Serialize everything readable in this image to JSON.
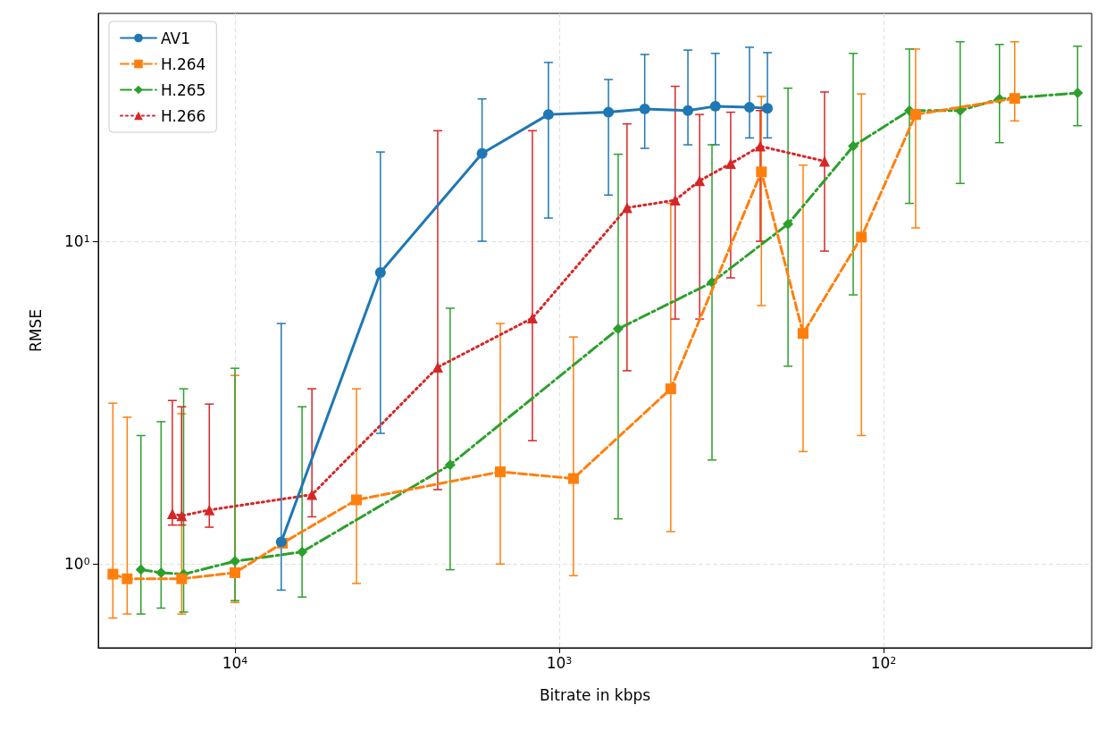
{
  "chart_data": {
    "type": "line",
    "xlabel": "Bitrate in kbps",
    "ylabel": "RMSE",
    "log": "xy",
    "grid": true,
    "legend": "top left",
    "xlim": [
      26400,
      22.8
    ],
    "ylim": [
      0.55,
      50.8
    ],
    "xticks": [
      {
        "value": 10000,
        "label": "10$^{4}$"
      },
      {
        "value": 1000,
        "label": "10$^{3}$"
      },
      {
        "value": 100,
        "label": "10$^{2}$"
      }
    ],
    "yticks": [
      {
        "value": 1,
        "label": "10$^{0}$"
      },
      {
        "value": 10,
        "label": "10$^{1}$"
      }
    ],
    "series": [
      {
        "name": "AV1",
        "color": "#1f77b4",
        "marker": "circle",
        "line_style": "solid",
        "x": [
          7200,
          3560,
          1730,
          1080,
          705,
          545,
          401,
          330,
          259,
          228
        ],
        "values": [
          1.17,
          8.0,
          18.7,
          24.7,
          25.1,
          25.7,
          25.4,
          26.2,
          26.0,
          25.8
        ],
        "errors": [
          [
            0.83,
            5.56
          ],
          [
            2.54,
            18.9
          ],
          [
            10,
            27.6
          ],
          [
            11.8,
            35.8
          ],
          [
            13.9,
            31.7
          ],
          [
            19.4,
            37.9
          ],
          [
            19.9,
            39.1
          ],
          [
            19.9,
            38.2
          ],
          [
            20.9,
            39.9
          ],
          [
            20.9,
            38.4
          ]
        ]
      },
      {
        "name": "H.264",
        "color": "#ff7f0e",
        "marker": "square",
        "line_style": "dashed",
        "x": [
          23800,
          21500,
          14600,
          10000,
          7140,
          4220,
          1520,
          904,
          453,
          238,
          177,
          117,
          79.6,
          39.4
        ],
        "values": [
          0.93,
          0.9,
          0.9,
          0.94,
          1.16,
          1.58,
          1.93,
          1.84,
          3.49,
          16.4,
          5.18,
          10.3,
          24.7,
          27.7
        ],
        "errors": [
          [
            0.68,
            3.15
          ],
          [
            0.7,
            2.85
          ],
          [
            0.7,
            2.92
          ],
          [
            0.76,
            3.84
          ],
          null,
          [
            0.87,
            3.49
          ],
          [
            1.0,
            5.56
          ],
          [
            0.92,
            5.05
          ],
          [
            1.26,
            13.1
          ],
          [
            6.32,
            28.1
          ],
          [
            2.23,
            17.2
          ],
          [
            2.5,
            28.6
          ],
          [
            11.0,
            39.4
          ],
          [
            23.6,
            41.5
          ]
        ]
      },
      {
        "name": "H.265",
        "color": "#2ca02c",
        "marker": "diamond",
        "line_style": "dashdot",
        "x": [
          19500,
          16900,
          14400,
          10000,
          6210,
          2170,
          658,
          338,
          197,
          124,
          83.2,
          58.0,
          43.9,
          25.2
        ],
        "values": [
          0.96,
          0.94,
          0.93,
          1.02,
          1.09,
          2.03,
          5.35,
          7.46,
          11.3,
          19.7,
          25.4,
          25.4,
          27.6,
          28.8
        ],
        "errors": [
          [
            0.7,
            2.5
          ],
          [
            0.73,
            2.76
          ],
          [
            0.71,
            3.49
          ],
          [
            0.77,
            4.04
          ],
          [
            0.79,
            3.07
          ],
          [
            0.96,
            6.2
          ],
          [
            1.38,
            18.6
          ],
          [
            2.1,
            19.9
          ],
          [
            4.1,
            29.8
          ],
          [
            6.82,
            38.2
          ],
          [
            13.1,
            39.4
          ],
          [
            15.1,
            41.5
          ],
          [
            20.2,
            40.7
          ],
          [
            22.8,
            40.2
          ]
        ]
      },
      {
        "name": "H.266",
        "color": "#d62728",
        "marker": "triangle",
        "line_style": "dotted",
        "x": [
          15600,
          14600,
          12000,
          5790,
          2370,
          1210,
          618,
          439,
          369,
          296,
          240,
          152
        ],
        "values": [
          1.43,
          1.41,
          1.47,
          1.64,
          4.07,
          5.78,
          12.7,
          13.4,
          15.4,
          17.4,
          19.7,
          17.7
        ],
        "errors": [
          [
            1.32,
            3.21
          ],
          [
            1.32,
            3.07
          ],
          [
            1.3,
            3.13
          ],
          [
            1.4,
            3.49
          ],
          [
            1.7,
            22.0
          ],
          [
            2.41,
            22.0
          ],
          [
            3.97,
            23.1
          ],
          [
            5.74,
            30.2
          ],
          [
            5.74,
            24.7
          ],
          [
            7.7,
            25.1
          ],
          [
            10,
            25.4
          ],
          [
            9.32,
            29.0
          ]
        ]
      }
    ]
  }
}
